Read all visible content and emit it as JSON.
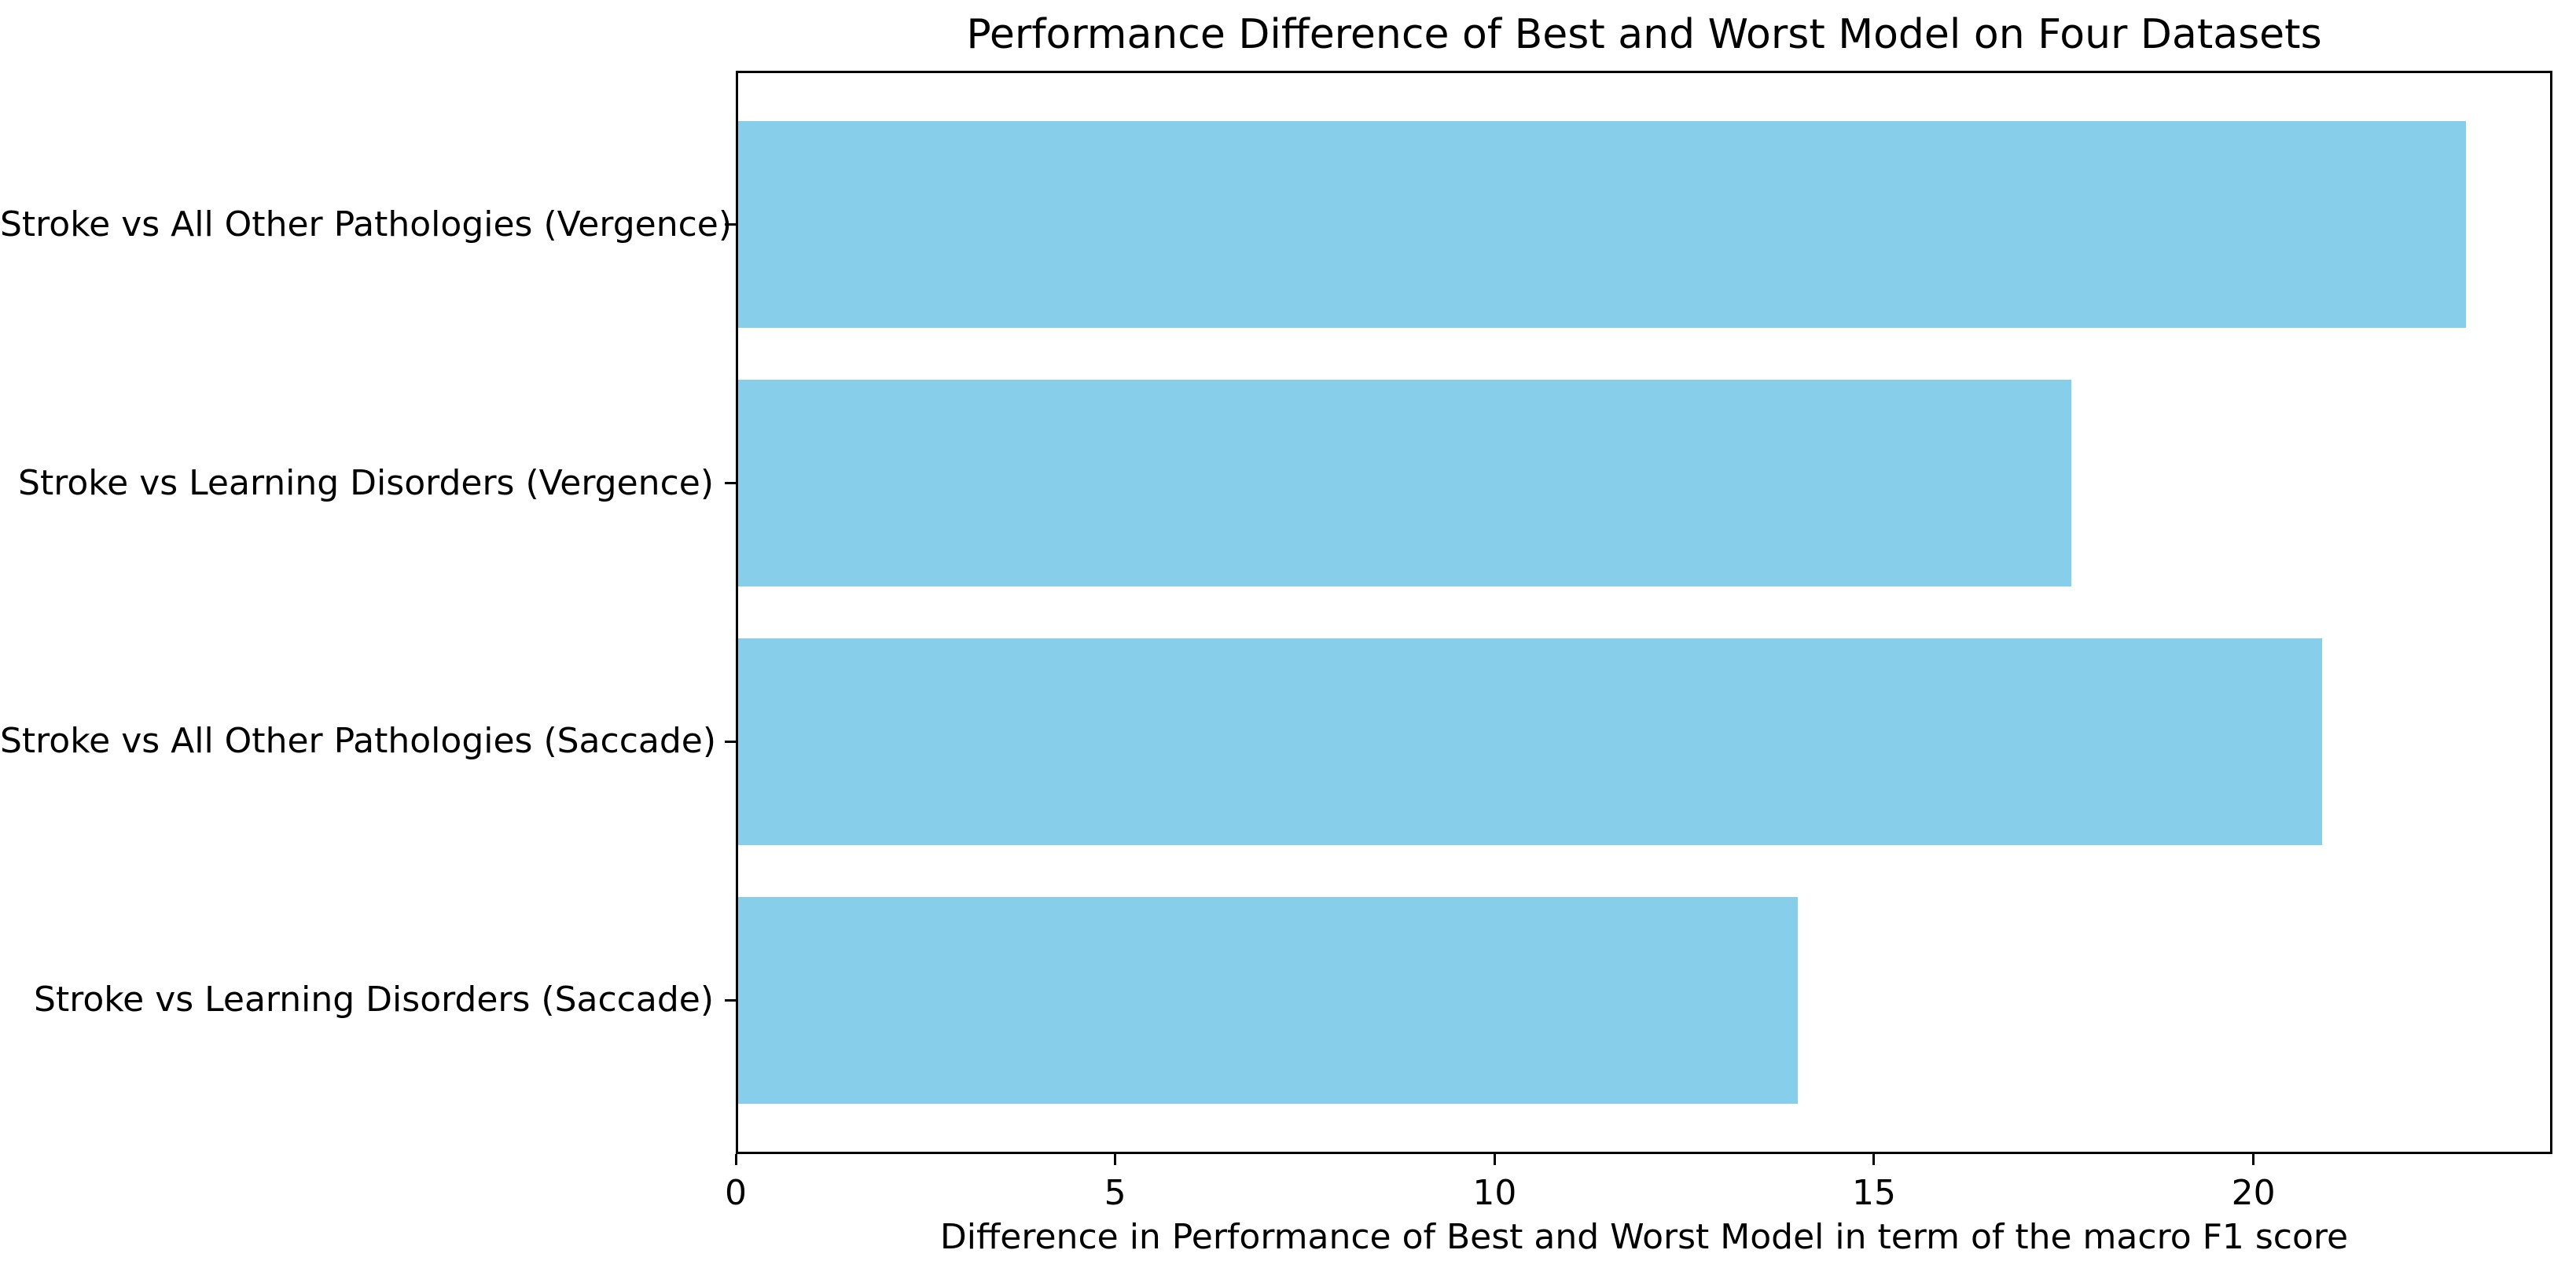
{
  "figure": {
    "background_color": "#ffffff",
    "text_color": "#000000",
    "spine_color": "#000000"
  },
  "chart_data": {
    "type": "bar",
    "orientation": "horizontal",
    "title": "Performance Difference of Best and Worst Model on Four Datasets",
    "xlabel": "Difference in Performance of Best and Worst Model in term of the macro F1 score",
    "ylabel": "",
    "categories": [
      "Stroke vs All Other Pathologies (Vergence)",
      "Stroke vs Learning Disorders (Vergence)",
      "Stroke vs All Other Pathologies (Saccade)",
      "Stroke vs Learning Disorders (Saccade)"
    ],
    "values": [
      22.8,
      17.6,
      20.9,
      14.0
    ],
    "bar_color": "#87CEEB",
    "xlim": [
      0,
      23.94
    ],
    "xticks": [
      0,
      5,
      10,
      15,
      20
    ],
    "grid": false,
    "legend": null
  }
}
